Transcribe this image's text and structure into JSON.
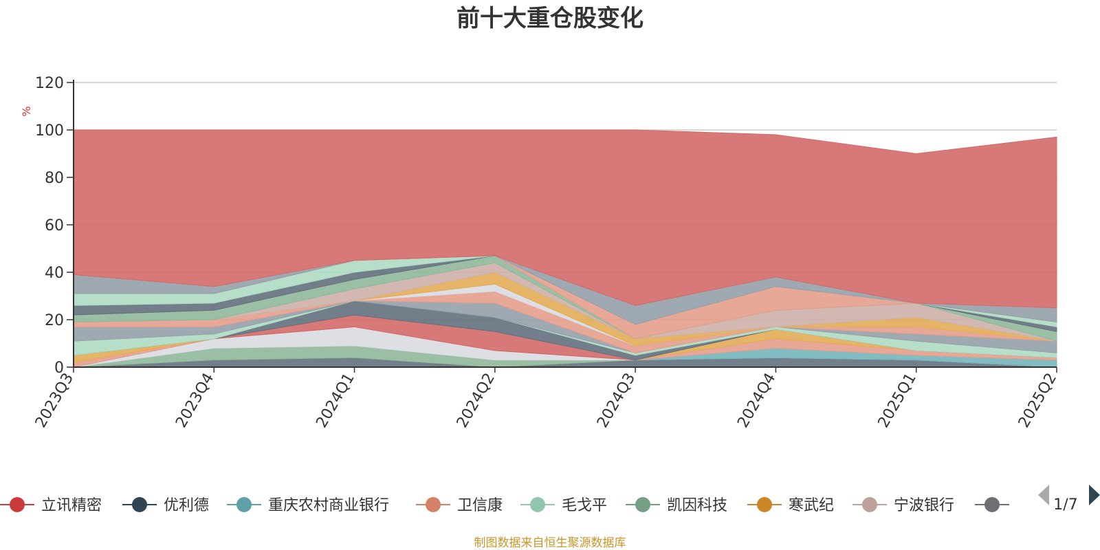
{
  "chart_data": {
    "type": "area",
    "title": "前十大重仓股变化",
    "unit_label": "%",
    "categories": [
      "2023Q3",
      "2023Q4",
      "2024Q1",
      "2024Q2",
      "2024Q3",
      "2024Q4",
      "2025Q1",
      "2025Q2"
    ],
    "ylim": [
      0,
      120
    ],
    "yticks": [
      0,
      20,
      40,
      60,
      80,
      100,
      120
    ],
    "grid": true,
    "stacked": true,
    "series": [
      {
        "name": "",
        "color": "#63717e",
        "values": [
          0,
          3,
          4,
          0,
          3,
          4,
          3,
          0
        ]
      },
      {
        "name": "",
        "color": "#90b89a",
        "values": [
          0,
          5,
          5,
          3,
          0,
          0,
          0,
          0
        ]
      },
      {
        "name": "",
        "color": "#d9dce2",
        "values": [
          0,
          4,
          8,
          4,
          0,
          0,
          0,
          0
        ]
      },
      {
        "name": "重庆农村商业银行",
        "color": "#74b5bd",
        "values": [
          0,
          0,
          0,
          0,
          0,
          4,
          2,
          3
        ]
      },
      {
        "name": "卫信康",
        "color": "#e69e8c",
        "values": [
          2,
          0,
          0,
          0,
          0,
          4,
          2,
          1
        ]
      },
      {
        "name": "寒武纪",
        "color": "#e3ac55",
        "values": [
          3,
          0,
          0,
          0,
          0,
          4,
          0,
          0
        ]
      },
      {
        "name": "立讯精密",
        "color": "#d46a6a",
        "values": [
          0,
          0,
          5,
          8,
          0,
          0,
          0,
          0
        ]
      },
      {
        "name": "",
        "color": "#63717e",
        "values": [
          0,
          0,
          6,
          6,
          2,
          0,
          0,
          0
        ]
      },
      {
        "name": "毛戈平",
        "color": "#aedac3",
        "values": [
          6,
          2,
          0,
          0,
          1,
          1,
          4,
          2
        ]
      },
      {
        "name": "",
        "color": "#95a0a8",
        "values": [
          6,
          3,
          0,
          6,
          0,
          0,
          3,
          5
        ]
      },
      {
        "name": "",
        "color": "#e69e8c",
        "values": [
          2,
          3,
          0,
          5,
          3,
          0,
          3,
          0
        ]
      },
      {
        "name": "",
        "color": "#d9dce2",
        "values": [
          0,
          0,
          0,
          3,
          0,
          0,
          0,
          0
        ]
      },
      {
        "name": "寒武纪",
        "color": "#e3ac55",
        "values": [
          0,
          0,
          0,
          5,
          3,
          0,
          4,
          0
        ]
      },
      {
        "name": "宁波银行",
        "color": "#cdb0a7",
        "values": [
          0,
          0,
          5,
          4,
          0,
          7,
          6,
          0
        ]
      },
      {
        "name": "凯因科技",
        "color": "#90b89a",
        "values": [
          3,
          4,
          4,
          3,
          0,
          0,
          0,
          4
        ]
      },
      {
        "name": "优利德",
        "color": "#63717e",
        "values": [
          4,
          3,
          3,
          0,
          0,
          0,
          0,
          2
        ]
      },
      {
        "name": "毛戈平",
        "color": "#aedac3",
        "values": [
          5,
          4,
          5,
          0,
          0,
          0,
          0,
          2
        ]
      },
      {
        "name": "",
        "color": "#e69e8c",
        "values": [
          0,
          0,
          0,
          0,
          6,
          10,
          0,
          0
        ]
      },
      {
        "name": "",
        "color": "#95a0a8",
        "values": [
          8,
          3,
          0,
          0,
          8,
          4,
          0,
          6
        ]
      },
      {
        "name": "立讯精密",
        "color": "#d46a6a",
        "values": [
          61,
          66,
          55,
          53,
          74,
          60,
          63,
          72
        ]
      }
    ]
  },
  "legend": {
    "items": [
      {
        "label": "立讯精密",
        "color": "#cc3b3b"
      },
      {
        "label": "优利德",
        "color": "#2f4554"
      },
      {
        "label": "重庆农村商业银行",
        "color": "#61a0a8"
      },
      {
        "label": "卫信康",
        "color": "#d48265"
      },
      {
        "label": "毛戈平",
        "color": "#91c7ae"
      },
      {
        "label": "凯因科技",
        "color": "#749f83"
      },
      {
        "label": "寒武纪",
        "color": "#ca8622"
      },
      {
        "label": "宁波银行",
        "color": "#bda29a"
      },
      {
        "label": "",
        "color": "#6e7074"
      }
    ],
    "page": "1/7"
  },
  "source_note": "制图数据来自恒生聚源数据库"
}
